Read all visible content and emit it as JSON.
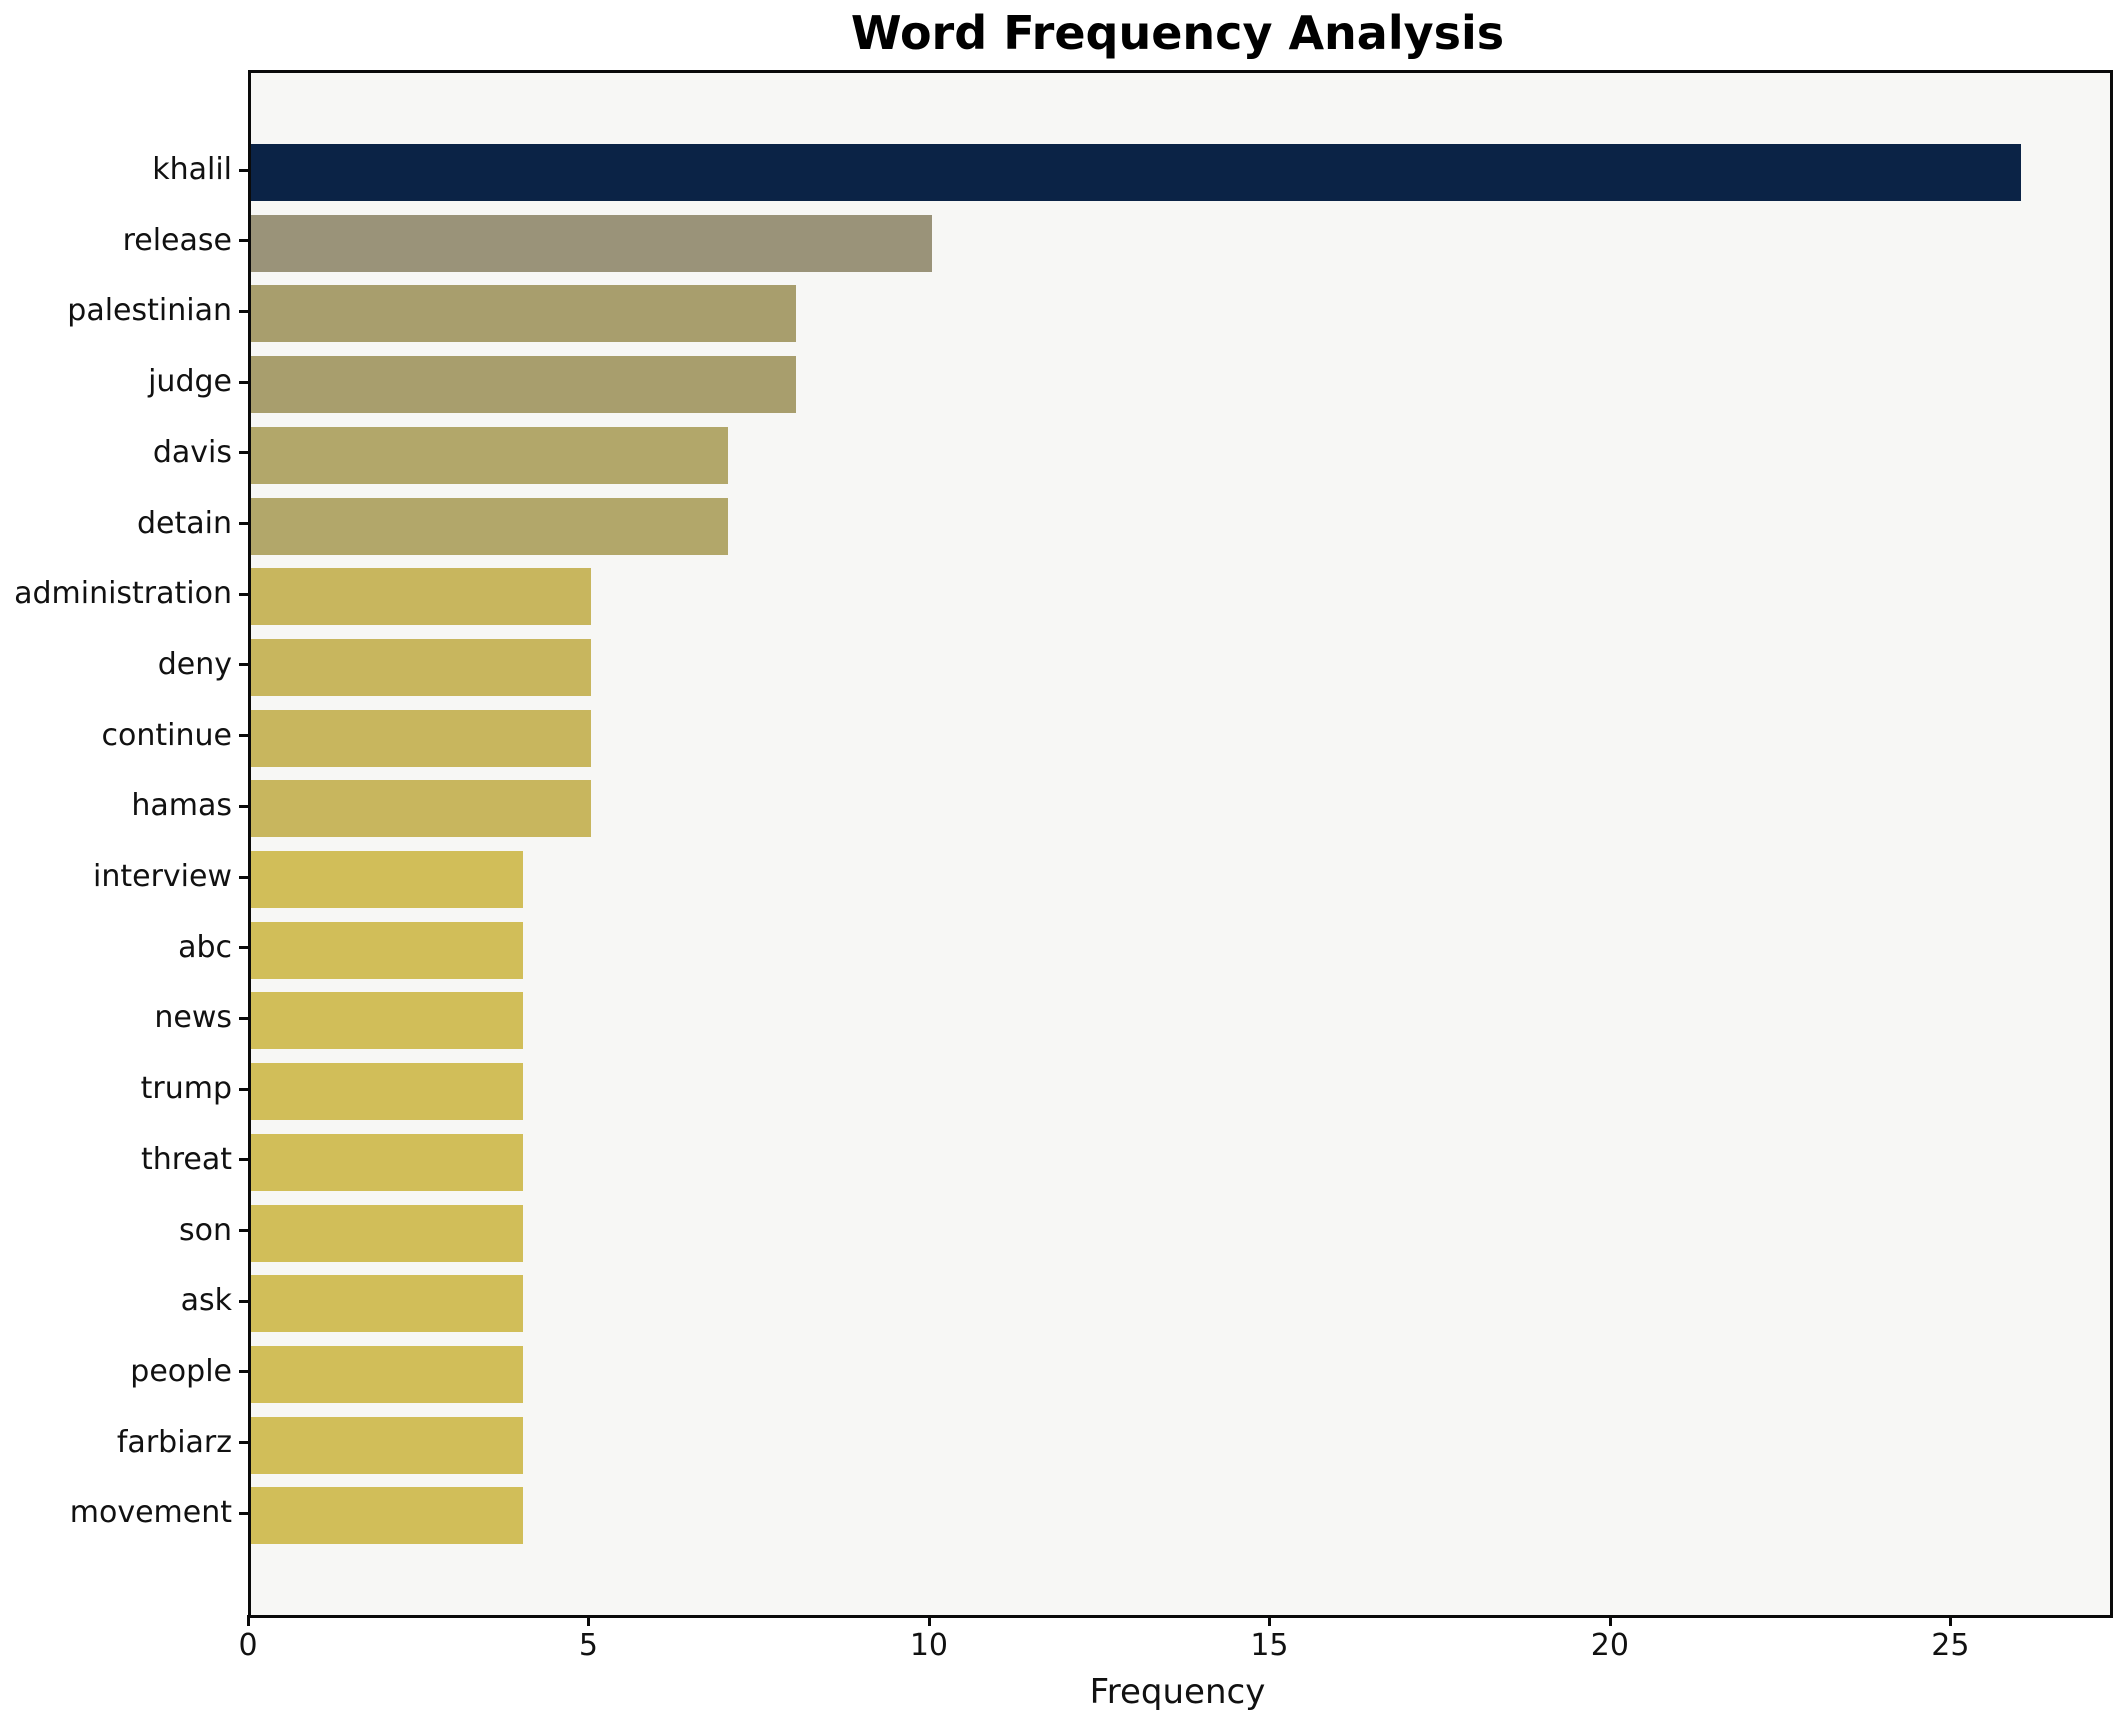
{
  "chart_data": {
    "type": "bar",
    "orientation": "horizontal",
    "title": "Word Frequency Analysis",
    "xlabel": "Frequency",
    "ylabel": "",
    "xlim": [
      0,
      27.3
    ],
    "x_ticks": [
      0,
      5,
      10,
      15,
      20,
      25
    ],
    "grid": false,
    "legend": "none",
    "plot_background": "#f7f7f5",
    "categories": [
      "khalil",
      "release",
      "palestinian",
      "judge",
      "davis",
      "detain",
      "administration",
      "deny",
      "continue",
      "hamas",
      "interview",
      "abc",
      "news",
      "trump",
      "threat",
      "son",
      "ask",
      "people",
      "farbiarz",
      "movement"
    ],
    "values": [
      26,
      10,
      8,
      8,
      7,
      7,
      5,
      5,
      5,
      5,
      4,
      4,
      4,
      4,
      4,
      4,
      4,
      4,
      4,
      4
    ],
    "bars": [
      {
        "word": "khalil",
        "value": 26,
        "color": "#0b2346"
      },
      {
        "word": "release",
        "value": 10,
        "color": "#9a9379"
      },
      {
        "word": "palestinian",
        "value": 8,
        "color": "#a89e6d"
      },
      {
        "word": "judge",
        "value": 8,
        "color": "#a89e6d"
      },
      {
        "word": "davis",
        "value": 7,
        "color": "#b2a76a"
      },
      {
        "word": "detain",
        "value": 7,
        "color": "#b2a76a"
      },
      {
        "word": "administration",
        "value": 5,
        "color": "#c8b65e"
      },
      {
        "word": "deny",
        "value": 5,
        "color": "#c8b65e"
      },
      {
        "word": "continue",
        "value": 5,
        "color": "#c8b65e"
      },
      {
        "word": "hamas",
        "value": 5,
        "color": "#c8b65e"
      },
      {
        "word": "interview",
        "value": 4,
        "color": "#d1be59"
      },
      {
        "word": "abc",
        "value": 4,
        "color": "#d1be59"
      },
      {
        "word": "news",
        "value": 4,
        "color": "#d1be59"
      },
      {
        "word": "trump",
        "value": 4,
        "color": "#d1be59"
      },
      {
        "word": "threat",
        "value": 4,
        "color": "#d1be59"
      },
      {
        "word": "son",
        "value": 4,
        "color": "#d1be59"
      },
      {
        "word": "ask",
        "value": 4,
        "color": "#d1be59"
      },
      {
        "word": "people",
        "value": 4,
        "color": "#d1be59"
      },
      {
        "word": "farbiarz",
        "value": 4,
        "color": "#d1be59"
      },
      {
        "word": "movement",
        "value": 4,
        "color": "#d1be59"
      }
    ]
  }
}
